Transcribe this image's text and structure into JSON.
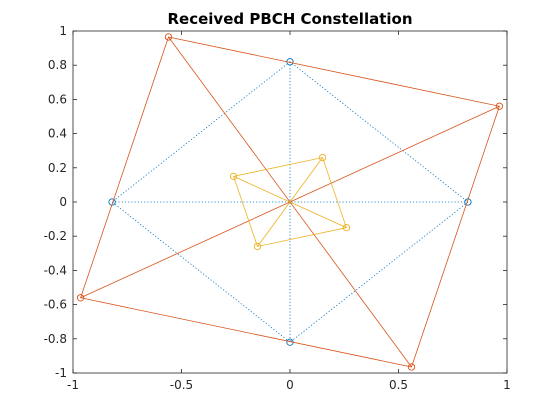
{
  "chart_data": {
    "type": "scatter",
    "title": "Received PBCH Constellation",
    "xlabel": "",
    "ylabel": "",
    "xlim": [
      -1,
      1
    ],
    "ylim": [
      -1,
      1
    ],
    "xticks": [
      -1,
      -0.5,
      0,
      0.5,
      1
    ],
    "xtick_labels": [
      "-1",
      "-0.5",
      "0",
      "0.5",
      "1"
    ],
    "yticks": [
      -1,
      -0.8,
      -0.6,
      -0.4,
      -0.2,
      0,
      0.2,
      0.4,
      0.6,
      0.8,
      1
    ],
    "ytick_labels": [
      "-1",
      "-0.8",
      "-0.6",
      "-0.4",
      "-0.2",
      "0",
      "0.2",
      "0.4",
      "0.6",
      "0.8",
      "1"
    ],
    "grid": false,
    "legend": "none",
    "series": [
      {
        "color": "#0072BD",
        "line_style": "dotted",
        "marker": "circle",
        "points": [
          {
            "x": 0,
            "y": 0.82
          },
          {
            "x": -0.82,
            "y": 0
          },
          {
            "x": 0,
            "y": -0.82
          },
          {
            "x": 0.82,
            "y": 0
          }
        ]
      },
      {
        "color": "#D95319",
        "line_style": "solid",
        "marker": "circle",
        "points": [
          {
            "x": -0.56,
            "y": 0.965
          },
          {
            "x": 0.965,
            "y": 0.56
          },
          {
            "x": 0.56,
            "y": -0.965
          },
          {
            "x": -0.965,
            "y": -0.56
          }
        ]
      },
      {
        "color": "#EDB120",
        "line_style": "solid",
        "marker": "circle",
        "points": [
          {
            "x": -0.26,
            "y": 0.15
          },
          {
            "x": 0.15,
            "y": 0.26
          },
          {
            "x": 0.26,
            "y": -0.15
          },
          {
            "x": -0.15,
            "y": -0.26
          }
        ]
      }
    ]
  }
}
